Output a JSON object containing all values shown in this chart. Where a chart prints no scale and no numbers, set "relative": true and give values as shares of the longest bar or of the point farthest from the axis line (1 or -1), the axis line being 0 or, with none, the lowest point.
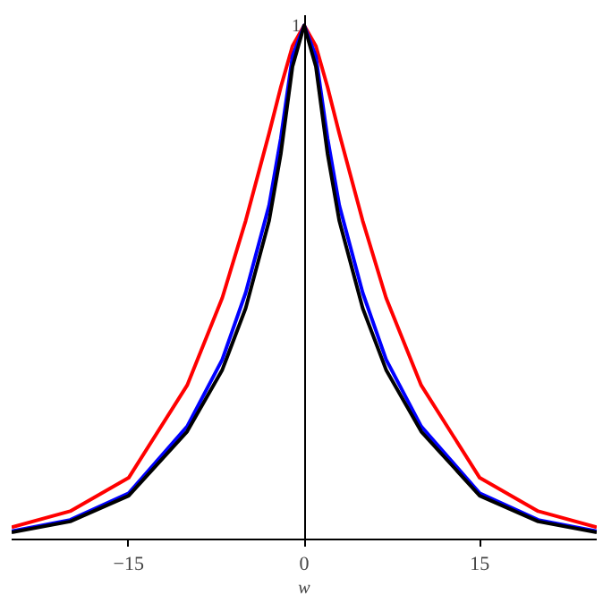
{
  "chart_data": {
    "type": "line",
    "relative": true,
    "xlabel": "w",
    "annotations": [
      "1"
    ],
    "x": [
      -25,
      -20,
      -15,
      -10,
      -7,
      -5,
      -3,
      -2,
      -1,
      0,
      1,
      2,
      3,
      5,
      7,
      10,
      15,
      20,
      25
    ],
    "xlim": [
      -25,
      25
    ],
    "xticks": [
      {
        "value": -15,
        "label": "−15"
      },
      0,
      15
    ],
    "series": [
      {
        "color": "#ff0000",
        "values": [
          0.024,
          0.055,
          0.12,
          0.3,
          0.47,
          0.62,
          0.79,
          0.88,
          0.96,
          1,
          0.96,
          0.88,
          0.79,
          0.62,
          0.47,
          0.3,
          0.12,
          0.055,
          0.024
        ]
      },
      {
        "color": "#0000ff",
        "values": [
          0.016,
          0.038,
          0.09,
          0.22,
          0.35,
          0.48,
          0.65,
          0.78,
          0.94,
          1,
          0.94,
          0.78,
          0.65,
          0.48,
          0.35,
          0.22,
          0.09,
          0.038,
          0.016
        ]
      },
      {
        "color": "#000000",
        "values": [
          0.014,
          0.035,
          0.085,
          0.21,
          0.33,
          0.45,
          0.62,
          0.75,
          0.92,
          1,
          0.92,
          0.75,
          0.62,
          0.45,
          0.33,
          0.21,
          0.085,
          0.035,
          0.014
        ]
      }
    ]
  }
}
